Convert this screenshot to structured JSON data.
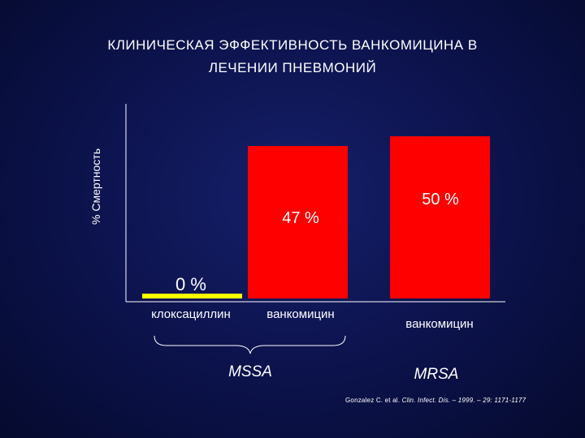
{
  "title_line1": "КЛИНИЧЕСКАЯ  ЭФФЕКТИВНОСТЬ  ВАНКОМИЦИНА  В",
  "title_line2": "ЛЕЧЕНИИ  ПНЕВМОНИЙ",
  "source": {
    "authors": "Gonzalez C. et al.",
    "journal": "Clin. Infect. Dis. – 1999. – 29: 1171-1177"
  },
  "chart_data": {
    "type": "bar",
    "ylabel": "% Смертность",
    "xlabel": "",
    "ylim": [
      0,
      60
    ],
    "grid": false,
    "legend": "none",
    "categories": [
      "клоксациллин",
      "ванкомицин",
      "ванкомицин"
    ],
    "groups": [
      "MSSA",
      "MSSA",
      "MRSA"
    ],
    "group_labels": [
      "MSSA",
      "MRSA"
    ],
    "values": [
      0,
      47,
      50
    ],
    "data_labels": [
      "0 %",
      "47 %",
      "50 %"
    ],
    "colors": [
      "#ffff00",
      "#ff0000",
      "#ff0000"
    ],
    "axis_color": "#ffffff"
  }
}
